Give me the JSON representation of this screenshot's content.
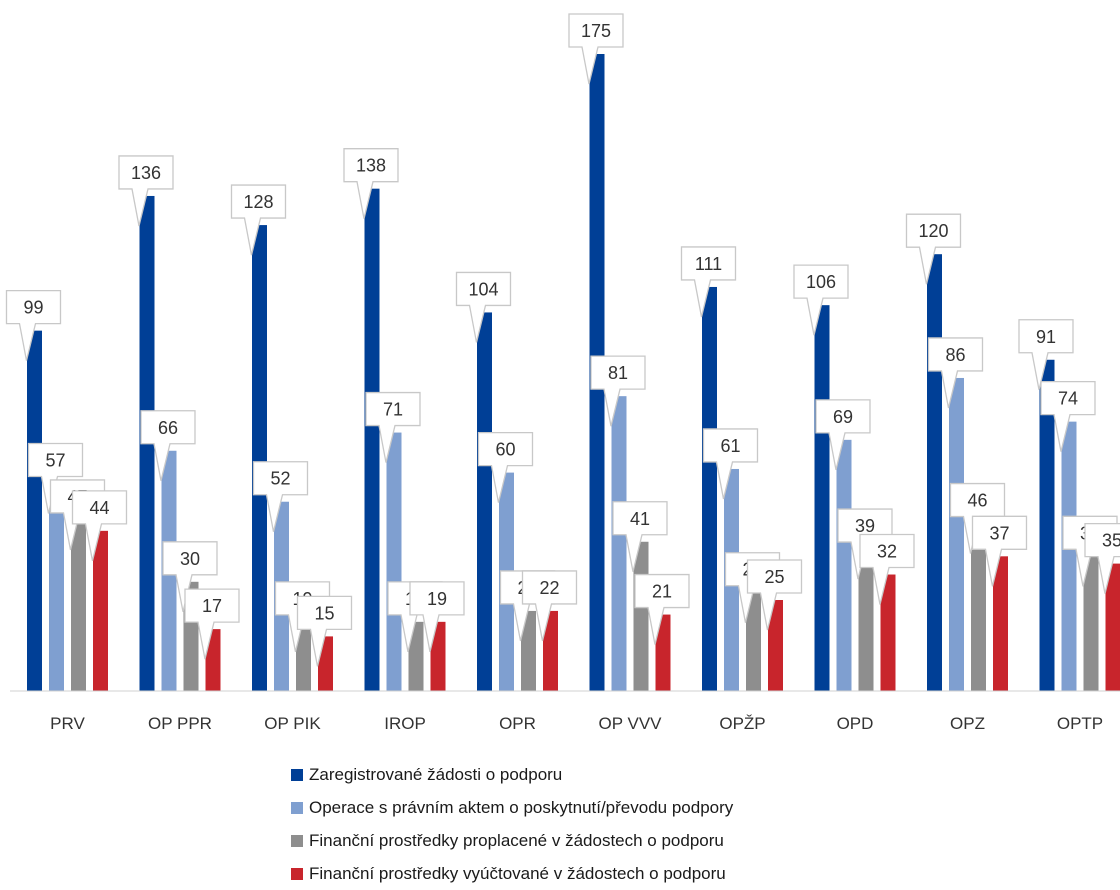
{
  "chart_data": {
    "type": "bar",
    "title": "",
    "xlabel": "",
    "ylabel": "",
    "ylim": [
      0,
      175
    ],
    "grid": false,
    "legend_position": "bottom",
    "categories": [
      "PRV",
      "OP PPR",
      "OP PIK",
      "IROP",
      "OPR",
      "OP VVV",
      "OPŽP",
      "OPD",
      "OPZ",
      "OPTP"
    ],
    "series": [
      {
        "name": "Zaregistrované žádosti o podporu",
        "color": "#003f96",
        "values": [
          99,
          136,
          128,
          138,
          104,
          175,
          111,
          106,
          120,
          91
        ]
      },
      {
        "name": "Operace s právním aktem o poskytnutí/převodu podpory",
        "color": "#7f9fd0",
        "values": [
          57,
          66,
          52,
          71,
          60,
          81,
          61,
          69,
          86,
          74
        ]
      },
      {
        "name": "Finanční prostředky proplacené v žádostech o podporu",
        "color": "#8e8e8e",
        "values": [
          47,
          30,
          19,
          19,
          22,
          41,
          27,
          39,
          46,
          37
        ]
      },
      {
        "name": "Finanční prostředky vyúčtované v žádostech o podporu",
        "color": "#c8252c",
        "values": [
          44,
          17,
          15,
          19,
          22,
          21,
          25,
          32,
          37,
          35
        ]
      }
    ]
  }
}
